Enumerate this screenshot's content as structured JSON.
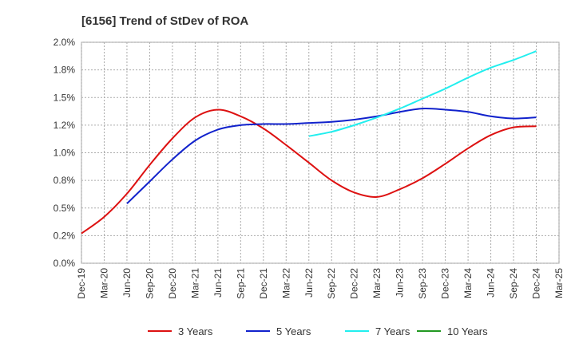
{
  "chart_data": {
    "type": "line",
    "title": "[6156]  Trend of StDev of ROA",
    "xlabel": "",
    "ylabel": "",
    "x_ticks": [
      "Dec-19",
      "Mar-20",
      "Jun-20",
      "Sep-20",
      "Dec-20",
      "Mar-21",
      "Jun-21",
      "Sep-21",
      "Dec-21",
      "Mar-22",
      "Jun-22",
      "Sep-22",
      "Dec-22",
      "Mar-23",
      "Jun-23",
      "Sep-23",
      "Dec-23",
      "Mar-24",
      "Jun-24",
      "Sep-24",
      "Dec-24",
      "Mar-25"
    ],
    "y_ticks": [
      "0.0%",
      "0.2%",
      "0.5%",
      "0.8%",
      "1.0%",
      "1.2%",
      "1.5%",
      "1.8%",
      "2.0%"
    ],
    "ylim": [
      0,
      2.0
    ],
    "grid": true,
    "legend_position": "bottom",
    "series": [
      {
        "name": "3 Years",
        "color": "#dd1111",
        "x": [
          "Dec-19",
          "Mar-20",
          "Jun-20",
          "Sep-20",
          "Dec-20",
          "Mar-21",
          "Jun-21",
          "Sep-21",
          "Dec-21",
          "Mar-22",
          "Jun-22",
          "Sep-22",
          "Dec-22",
          "Mar-23",
          "Jun-23",
          "Sep-23",
          "Dec-23",
          "Mar-24",
          "Jun-24",
          "Sep-24",
          "Dec-24"
        ],
        "values": [
          0.27,
          0.42,
          0.63,
          0.89,
          1.13,
          1.32,
          1.39,
          1.33,
          1.22,
          1.07,
          0.91,
          0.75,
          0.64,
          0.6,
          0.67,
          0.77,
          0.9,
          1.04,
          1.16,
          1.23,
          1.24
        ]
      },
      {
        "name": "5 Years",
        "color": "#1122cc",
        "x": [
          "Jun-20",
          "Sep-20",
          "Dec-20",
          "Mar-21",
          "Jun-21",
          "Sep-21",
          "Dec-21",
          "Mar-22",
          "Jun-22",
          "Sep-22",
          "Dec-22",
          "Mar-23",
          "Jun-23",
          "Sep-23",
          "Dec-23",
          "Mar-24",
          "Jun-24",
          "Sep-24",
          "Dec-24"
        ],
        "values": [
          0.54,
          0.74,
          0.94,
          1.11,
          1.21,
          1.25,
          1.26,
          1.26,
          1.27,
          1.28,
          1.3,
          1.33,
          1.37,
          1.4,
          1.39,
          1.37,
          1.33,
          1.31,
          1.32
        ]
      },
      {
        "name": "7 Years",
        "color": "#22eeee",
        "x": [
          "Jun-22",
          "Sep-22",
          "Dec-22",
          "Mar-23",
          "Jun-23",
          "Sep-23",
          "Dec-23",
          "Mar-24",
          "Jun-24",
          "Sep-24",
          "Dec-24"
        ],
        "values": [
          1.15,
          1.19,
          1.25,
          1.32,
          1.4,
          1.49,
          1.58,
          1.68,
          1.77,
          1.84,
          1.92
        ]
      },
      {
        "name": "10 Years",
        "color": "#229922",
        "x": [],
        "values": []
      }
    ]
  }
}
